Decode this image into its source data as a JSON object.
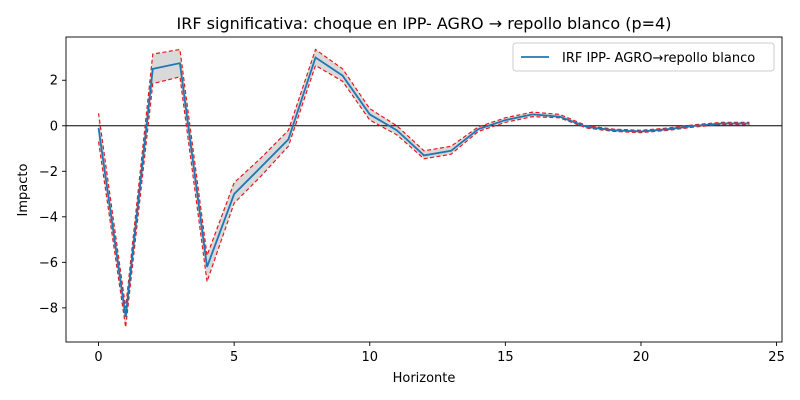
{
  "chart_data": {
    "type": "line",
    "title": "IRF significativa: choque en IPP- AGRO → repollo blanco (p=4)",
    "xlabel": "Horizonte",
    "ylabel": "Impacto",
    "xlim": [
      -1.2,
      25.2
    ],
    "ylim": [
      -9.5,
      3.9
    ],
    "xticks": [
      0,
      5,
      10,
      15,
      20,
      25
    ],
    "xtick_labels": [
      "0",
      "5",
      "10",
      "15",
      "20",
      "25"
    ],
    "yticks": [
      -8,
      -6,
      -4,
      -2,
      0,
      2
    ],
    "ytick_labels": [
      "−8",
      "−6",
      "−4",
      "−2",
      "0",
      "2"
    ],
    "zero_line": 0,
    "legend": {
      "position": "top-right",
      "label": "IRF IPP- AGRO→repollo blanco"
    },
    "x": [
      0,
      1,
      2,
      3,
      4,
      5,
      6,
      7,
      8,
      9,
      10,
      11,
      12,
      13,
      14,
      15,
      16,
      17,
      18,
      19,
      20,
      21,
      22,
      23,
      24
    ],
    "series": [
      {
        "name": "IRF IPP- AGRO→repollo blanco",
        "role": "irf",
        "color": "#1f77b4",
        "values": [
          -0.1,
          -8.4,
          2.5,
          2.75,
          -6.2,
          -3.0,
          -1.8,
          -0.6,
          3.0,
          2.2,
          0.5,
          -0.2,
          -1.3,
          -1.1,
          -0.15,
          0.25,
          0.5,
          0.4,
          -0.05,
          -0.2,
          -0.25,
          -0.15,
          0.0,
          0.1,
          0.1
        ]
      },
      {
        "role": "upper-band",
        "color": "#e41a1c",
        "values": [
          0.55,
          -8.0,
          3.15,
          3.35,
          -5.7,
          -2.5,
          -1.4,
          -0.2,
          3.35,
          2.5,
          0.75,
          0.0,
          -1.1,
          -0.9,
          -0.05,
          0.35,
          0.6,
          0.5,
          0.0,
          -0.15,
          -0.2,
          -0.1,
          0.05,
          0.15,
          0.15
        ]
      },
      {
        "role": "lower-band",
        "color": "#e41a1c",
        "values": [
          -0.7,
          -8.85,
          1.85,
          2.15,
          -6.85,
          -3.4,
          -2.2,
          -0.9,
          2.65,
          1.95,
          0.25,
          -0.4,
          -1.45,
          -1.25,
          -0.25,
          0.15,
          0.4,
          0.35,
          -0.1,
          -0.25,
          -0.3,
          -0.2,
          -0.05,
          0.05,
          0.05
        ]
      }
    ],
    "band_fill_color": "#d9d9d9",
    "grid": false
  }
}
